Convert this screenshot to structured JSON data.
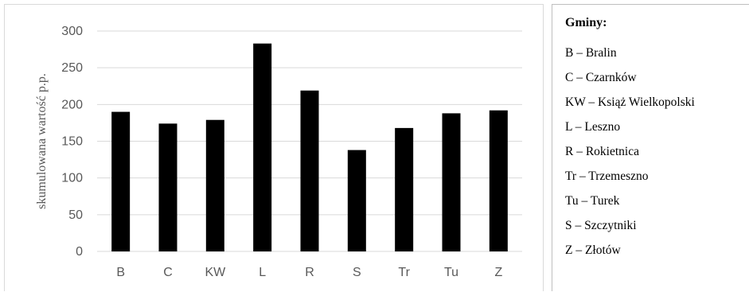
{
  "chart_data": {
    "type": "bar",
    "title": "",
    "xlabel": "",
    "ylabel": "skumulowana wartość p.p.",
    "categories": [
      "B",
      "C",
      "KW",
      "L",
      "R",
      "S",
      "Tr",
      "Tu",
      "Z"
    ],
    "values": [
      190,
      174,
      179,
      283,
      219,
      138,
      168,
      188,
      192
    ],
    "ylim": [
      0,
      300
    ],
    "yticks": [
      0,
      50,
      100,
      150,
      200,
      250,
      300
    ],
    "grid": true,
    "bar_color": "#000000",
    "grid_color": "#d9d9d9",
    "legend_position": "right"
  },
  "legend": {
    "title": "Gminy:",
    "items": [
      "B – Bralin",
      "C – Czarnków",
      "KW – Książ Wielkopolski",
      "L – Leszno",
      "R – Rokietnica",
      "Tr – Trzemeszno",
      "Tu – Turek",
      "S – Szczytniki",
      "Z – Złotów"
    ]
  }
}
